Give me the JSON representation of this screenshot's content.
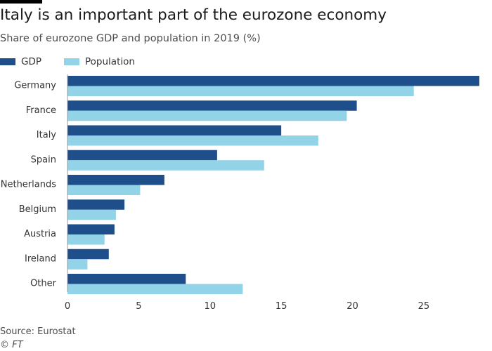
{
  "header": {
    "title": "Italy is an important part of the eurozone economy",
    "subtitle": "Share of eurozone GDP and population in 2019 (%)"
  },
  "footer": {
    "source": "Source: Eurostat",
    "credit": "© FT"
  },
  "colors": {
    "gdp": "#1e4f8a",
    "population": "#93d3e8",
    "axis": "#999999",
    "text": "#333333"
  },
  "chart_data": {
    "type": "bar",
    "orientation": "horizontal",
    "title": "Italy is an important part of the eurozone economy",
    "subtitle": "Share of eurozone GDP and population in 2019 (%)",
    "categories": [
      "Germany",
      "France",
      "Italy",
      "Spain",
      "Netherlands",
      "Belgium",
      "Austria",
      "Ireland",
      "Other"
    ],
    "series": [
      {
        "name": "GDP",
        "values": [
          28.9,
          20.3,
          15.0,
          10.5,
          6.8,
          4.0,
          3.3,
          2.9,
          8.3
        ]
      },
      {
        "name": "Population",
        "values": [
          24.3,
          19.6,
          17.6,
          13.8,
          5.1,
          3.4,
          2.6,
          1.4,
          12.3
        ]
      }
    ],
    "xlim": [
      0,
      29
    ],
    "xticks": [
      0,
      5,
      10,
      15,
      20,
      25
    ],
    "legend": "top-left",
    "grid": false,
    "xlabel": "",
    "ylabel": ""
  }
}
